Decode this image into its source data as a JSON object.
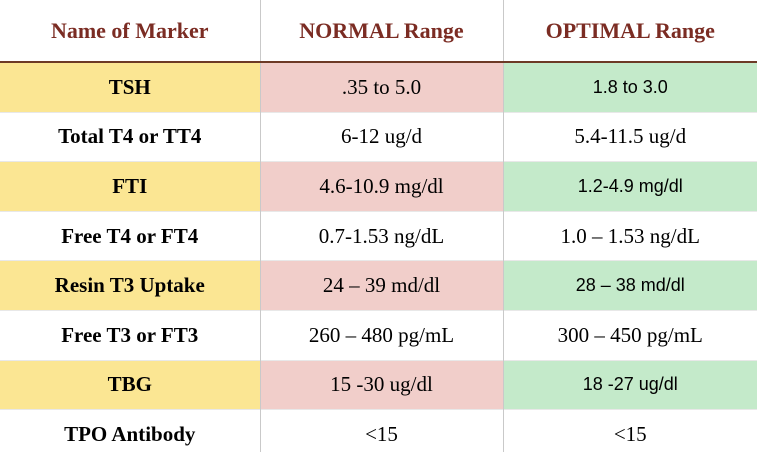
{
  "colors": {
    "header-text": "#7b2c23",
    "header-rule": "#6d3a26",
    "grid-line": "#c9c9c9",
    "yellow": "#fbe693",
    "pink": "#f1ceca",
    "green": "#c4eaca"
  },
  "table": {
    "columns": [
      {
        "label": "Name of Marker"
      },
      {
        "label": "NORMAL Range"
      },
      {
        "label": "OPTIMAL Range"
      }
    ],
    "rows": [
      {
        "marker": "TSH",
        "normal": ".35 to 5.0",
        "optimal": "1.8 to 3.0",
        "highlighted": true
      },
      {
        "marker": "Total T4 or TT4",
        "normal": "6-12 ug/d",
        "optimal": "5.4-11.5 ug/d",
        "highlighted": false
      },
      {
        "marker": "FTI",
        "normal": "4.6-10.9 mg/dl",
        "optimal": "1.2-4.9 mg/dl",
        "highlighted": true
      },
      {
        "marker": "Free T4 or FT4",
        "normal": "0.7-1.53 ng/dL",
        "optimal": "1.0 – 1.53 ng/dL",
        "highlighted": false
      },
      {
        "marker": "Resin T3 Uptake",
        "normal": "24 – 39 md/dl",
        "optimal": "28 – 38 md/dl",
        "highlighted": true
      },
      {
        "marker": "Free T3 or FT3",
        "normal": "260 – 480 pg/mL",
        "optimal": "300 – 450 pg/mL",
        "highlighted": false
      },
      {
        "marker": "TBG",
        "normal": "15 -30 ug/dl",
        "optimal": "18 -27 ug/dl",
        "highlighted": true
      },
      {
        "marker": "TPO Antibody",
        "normal": "<15",
        "optimal": "<15",
        "highlighted": false
      }
    ]
  }
}
